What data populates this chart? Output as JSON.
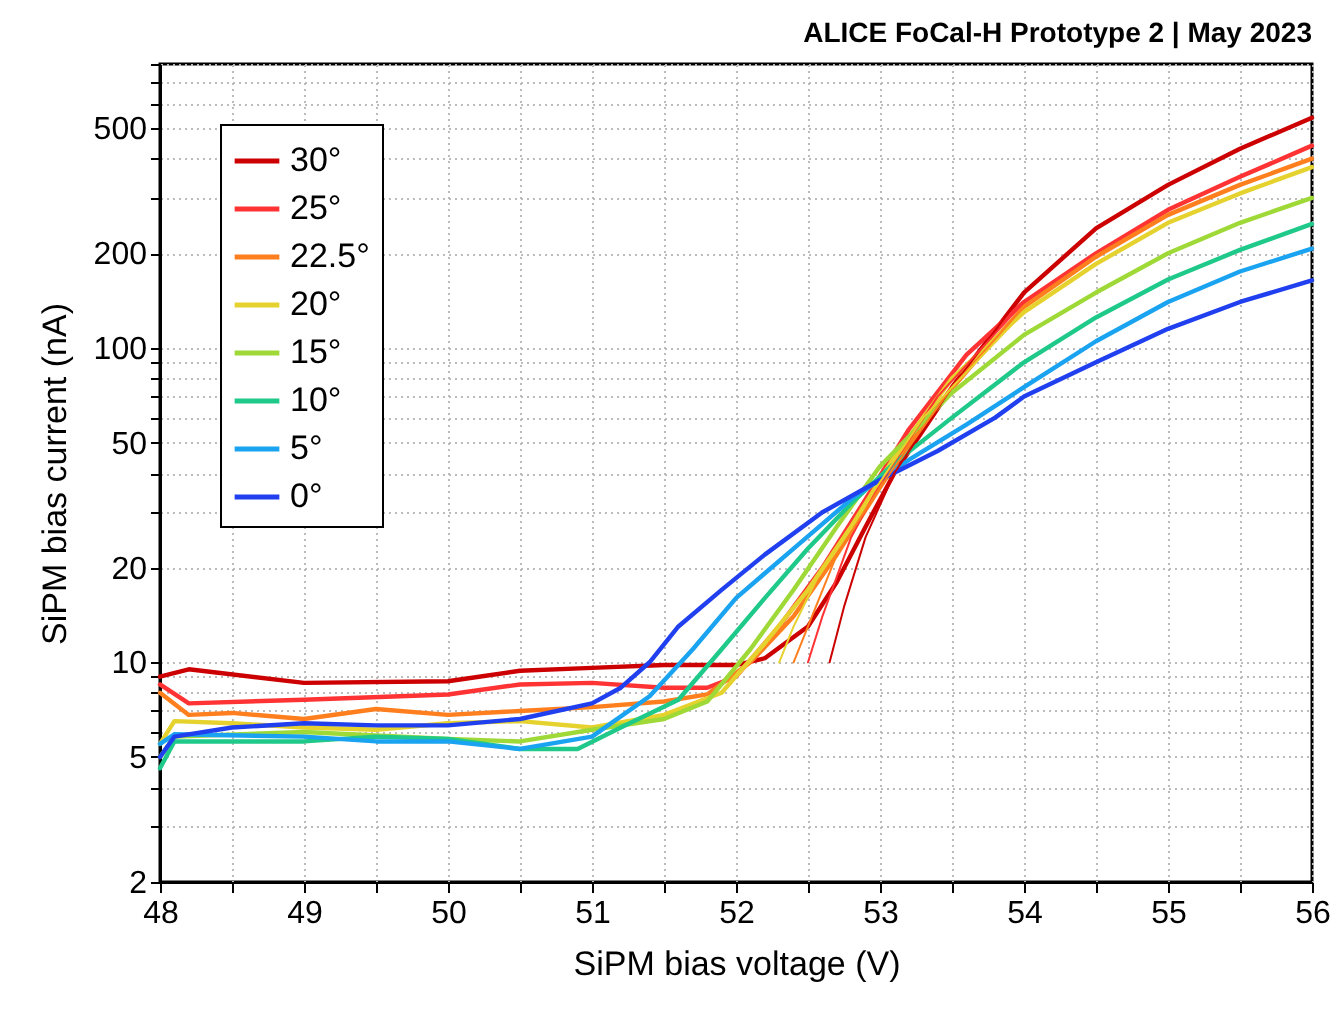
{
  "chart_data": {
    "type": "line",
    "title": "ALICE FoCal-H Prototype 2 | May 2023",
    "xlabel": "SiPM bias voltage (V)",
    "ylabel": "SiPM bias current (nA)",
    "log": "y",
    "grid": true,
    "legend": "top left",
    "line_style": "solid",
    "marker": "none",
    "xlim": [
      48,
      56
    ],
    "xticks": [
      48,
      {
        "value": 48.5,
        "label": null
      },
      49,
      {
        "value": 49.5,
        "label": null
      },
      50,
      {
        "value": 50.5,
        "label": null
      },
      51,
      {
        "value": 51.5,
        "label": null
      },
      52,
      {
        "value": 52.5,
        "label": null
      },
      53,
      {
        "value": 53.5,
        "label": null
      },
      54,
      {
        "value": 54.5,
        "label": null
      },
      55,
      {
        "value": 55.5,
        "label": null
      },
      56
    ],
    "ylim": [
      2,
      800
    ],
    "yticks": [
      2,
      {
        "value": 3,
        "label": null
      },
      {
        "value": 4,
        "label": null
      },
      5,
      {
        "value": 6,
        "label": null
      },
      {
        "value": 7,
        "label": null
      },
      {
        "value": 8,
        "label": null
      },
      {
        "value": 9,
        "label": null
      },
      10,
      20,
      {
        "value": 30,
        "label": null
      },
      {
        "value": 40,
        "label": null
      },
      50,
      {
        "value": 60,
        "label": null
      },
      {
        "value": 70,
        "label": null
      },
      {
        "value": 80,
        "label": null
      },
      {
        "value": 90,
        "label": null
      },
      100,
      200,
      {
        "value": 300,
        "label": null
      },
      {
        "value": 400,
        "label": null
      },
      500,
      {
        "value": 600,
        "label": null
      },
      {
        "value": 700,
        "label": null
      },
      {
        "value": 800,
        "label": null
      }
    ],
    "series": [
      {
        "name": "30°",
        "color": "#cc0000",
        "x": [
          48,
          48.2,
          49,
          50,
          50.5,
          51,
          51.5,
          52,
          52.2,
          52.5,
          52.7,
          52.9,
          53.1,
          53.5,
          54,
          54.5,
          55,
          55.5,
          56
        ],
        "values": [
          9,
          9.5,
          8.6,
          8.7,
          9.4,
          9.6,
          9.8,
          9.8,
          10.3,
          13,
          18,
          27,
          40,
          75,
          150,
          240,
          330,
          430,
          540
        ]
      },
      {
        "name": "25°",
        "color": "#ff3333",
        "x": [
          48,
          48.2,
          49,
          50,
          50.5,
          51,
          51.5,
          51.8,
          52,
          52.3,
          52.6,
          52.9,
          53.2,
          53.6,
          54,
          54.5,
          55,
          55.5,
          56
        ],
        "values": [
          8.5,
          7.4,
          7.6,
          7.9,
          8.5,
          8.6,
          8.3,
          8.3,
          9,
          13,
          20,
          33,
          55,
          95,
          140,
          200,
          275,
          350,
          440
        ]
      },
      {
        "name": "22.5°",
        "color": "#ff7f1e",
        "x": [
          48,
          48.2,
          48.5,
          49,
          49.5,
          50,
          50.5,
          51,
          51.5,
          51.8,
          52.1,
          52.4,
          52.7,
          53,
          53.3,
          53.7,
          54,
          54.5,
          55,
          55.5,
          56
        ],
        "values": [
          8,
          6.8,
          6.9,
          6.6,
          7.1,
          6.8,
          7,
          7.2,
          7.5,
          7.9,
          10,
          14,
          22,
          36,
          58,
          95,
          135,
          195,
          265,
          330,
          400
        ]
      },
      {
        "name": "20°",
        "color": "#e6d22e",
        "x": [
          48,
          48.1,
          48.5,
          49,
          49.5,
          50,
          50.5,
          51,
          51.5,
          51.9,
          52.2,
          52.5,
          52.8,
          53.1,
          53.5,
          54,
          54.5,
          55,
          55.5,
          56
        ],
        "values": [
          5.5,
          6.5,
          6.4,
          6.2,
          6.1,
          6.4,
          6.5,
          6.2,
          6.8,
          8,
          11.5,
          17,
          27,
          45,
          80,
          130,
          185,
          250,
          310,
          376
        ]
      },
      {
        "name": "15°",
        "color": "#9ed937",
        "x": [
          48,
          48.1,
          49,
          50,
          50.5,
          51,
          51.5,
          51.8,
          52.1,
          52.4,
          52.7,
          53,
          53.5,
          54,
          54.5,
          55,
          55.5,
          56
        ],
        "values": [
          5,
          5.8,
          6,
          5.7,
          5.6,
          6.1,
          6.6,
          7.5,
          11,
          17,
          27,
          42,
          72,
          110,
          150,
          200,
          250,
          300
        ]
      },
      {
        "name": "10°",
        "color": "#1fc98a",
        "x": [
          48,
          48.1,
          49,
          49.5,
          50,
          50.5,
          50.9,
          51.2,
          51.6,
          51.9,
          52.2,
          52.5,
          52.8,
          53.1,
          53.5,
          54,
          54.5,
          55,
          55.5,
          56
        ],
        "values": [
          4.6,
          5.6,
          5.6,
          5.8,
          5.7,
          5.3,
          5.3,
          6.2,
          7.6,
          11,
          16,
          23,
          32,
          43,
          60,
          90,
          125,
          165,
          205,
          248
        ]
      },
      {
        "name": "5°",
        "color": "#1aa3f0",
        "x": [
          48,
          48.1,
          49,
          49.5,
          50,
          50.5,
          51,
          51.4,
          51.7,
          52,
          52.4,
          52.8,
          53.2,
          53.6,
          54,
          54.5,
          55,
          55.5,
          56
        ],
        "values": [
          5.5,
          5.9,
          5.8,
          5.6,
          5.6,
          5.3,
          5.8,
          7.8,
          11,
          16,
          23,
          33,
          44,
          57,
          75,
          105,
          140,
          175,
          207
        ]
      },
      {
        "name": "0°",
        "color": "#2040f0",
        "x": [
          48,
          48.1,
          48.5,
          49,
          49.5,
          50,
          50.5,
          51,
          51.2,
          51.4,
          51.6,
          51.9,
          52.2,
          52.6,
          53,
          53.4,
          53.8,
          54,
          54.5,
          55,
          55.5,
          56
        ],
        "values": [
          5,
          5.8,
          6.2,
          6.4,
          6.3,
          6.3,
          6.6,
          7.4,
          8.3,
          10,
          13,
          17,
          22,
          30,
          38,
          47,
          60,
          70,
          90,
          115,
          140,
          164
        ]
      },
      {
        "type": "line",
        "color": "#cc0000",
        "x": [
          52.65,
          52.75,
          52.9,
          53.1,
          53.5,
          54,
          54.5
        ],
        "values": [
          10,
          15,
          25,
          40,
          75,
          150,
          240
        ]
      },
      {
        "type": "line",
        "color": "#ff3333",
        "x": [
          52.5,
          52.6,
          52.8,
          53,
          53.4,
          54
        ],
        "values": [
          10,
          14,
          25,
          37,
          70,
          140
        ]
      },
      {
        "type": "line",
        "color": "#ff7f1e",
        "x": [
          52.4,
          52.5,
          52.7,
          53,
          53.5,
          54
        ],
        "values": [
          10,
          13,
          22,
          36,
          75,
          135
        ]
      },
      {
        "type": "line",
        "color": "#e6d22e",
        "x": [
          52.3,
          52.4,
          52.6,
          52.9,
          53.3,
          54
        ],
        "values": [
          10,
          13,
          20,
          32,
          60,
          130
        ]
      }
    ]
  }
}
